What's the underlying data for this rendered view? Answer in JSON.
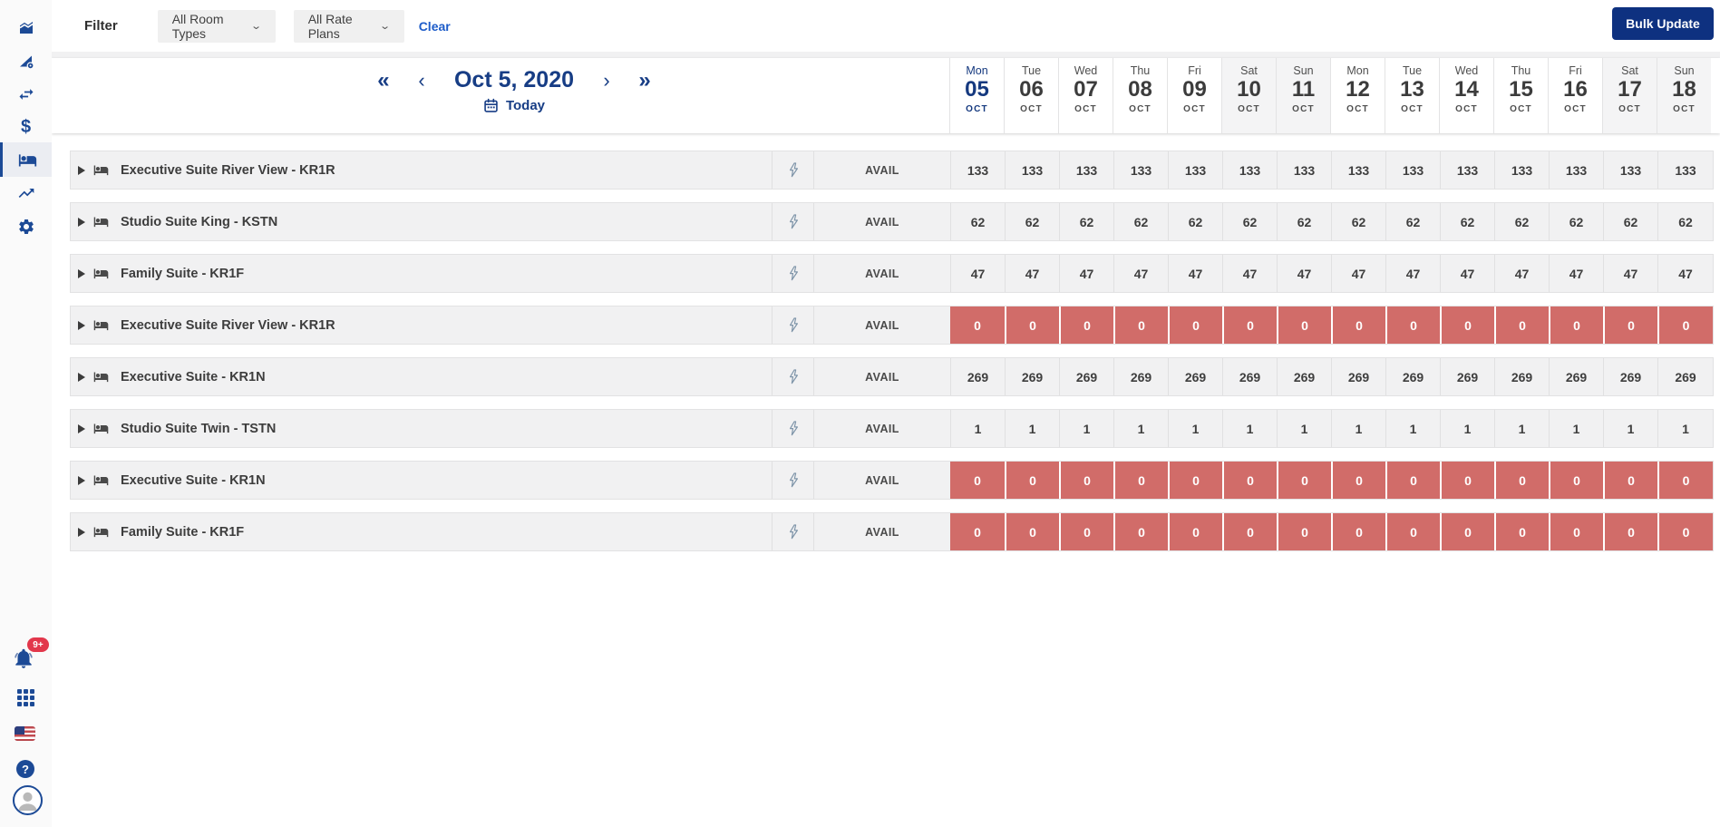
{
  "colors": {
    "navy": "#1c4a96",
    "navy_text": "#173d85",
    "button_navy": "#0e3180",
    "sold_out_red": "#d16c69",
    "badge_red": "#e2374b",
    "link_blue": "#1d5cc9",
    "row_gray": "#f1f1f2",
    "weekend_gray": "#f4f4f5"
  },
  "sidebar": {
    "items": [
      {
        "icon": "area-chart-icon",
        "active": false
      },
      {
        "icon": "rates-triangle-gear-icon",
        "active": false
      },
      {
        "icon": "swap-arrows-icon",
        "active": false
      },
      {
        "icon": "dollar-icon",
        "active": false
      },
      {
        "icon": "inventory-bed-icon",
        "active": true
      },
      {
        "icon": "trending-up-icon",
        "active": false
      },
      {
        "icon": "settings-gear-icon",
        "active": false
      }
    ],
    "notification_badge": "9+",
    "dollar_glyph": "$",
    "help_glyph": "?"
  },
  "filter_bar": {
    "label": "Filter",
    "room_types_value": "All Room Types",
    "rate_plans_value": "All Rate Plans",
    "clear_label": "Clear",
    "bulk_update_label": "Bulk Update",
    "chevron": "⌄"
  },
  "date_nav": {
    "prev_fast": "«",
    "prev": "‹",
    "title": "Oct 5, 2020",
    "next": "›",
    "next_fast": "»",
    "today_label": "Today"
  },
  "calendar": {
    "columns": [
      {
        "dow": "Mon",
        "day": "05",
        "month": "OCT",
        "weekend": false,
        "active": true
      },
      {
        "dow": "Tue",
        "day": "06",
        "month": "OCT",
        "weekend": false,
        "active": false
      },
      {
        "dow": "Wed",
        "day": "07",
        "month": "OCT",
        "weekend": false,
        "active": false
      },
      {
        "dow": "Thu",
        "day": "08",
        "month": "OCT",
        "weekend": false,
        "active": false
      },
      {
        "dow": "Fri",
        "day": "09",
        "month": "OCT",
        "weekend": false,
        "active": false
      },
      {
        "dow": "Sat",
        "day": "10",
        "month": "OCT",
        "weekend": true,
        "active": false
      },
      {
        "dow": "Sun",
        "day": "11",
        "month": "OCT",
        "weekend": true,
        "active": false
      },
      {
        "dow": "Mon",
        "day": "12",
        "month": "OCT",
        "weekend": false,
        "active": false
      },
      {
        "dow": "Tue",
        "day": "13",
        "month": "OCT",
        "weekend": false,
        "active": false
      },
      {
        "dow": "Wed",
        "day": "14",
        "month": "OCT",
        "weekend": false,
        "active": false
      },
      {
        "dow": "Thu",
        "day": "15",
        "month": "OCT",
        "weekend": false,
        "active": false
      },
      {
        "dow": "Fri",
        "day": "16",
        "month": "OCT",
        "weekend": false,
        "active": false
      },
      {
        "dow": "Sat",
        "day": "17",
        "month": "OCT",
        "weekend": true,
        "active": false
      },
      {
        "dow": "Sun",
        "day": "18",
        "month": "OCT",
        "weekend": true,
        "active": false
      }
    ]
  },
  "rows": [
    {
      "name": "Executive Suite River View - KR1R",
      "metric": "AVAIL",
      "zero": false,
      "values": [
        "133",
        "133",
        "133",
        "133",
        "133",
        "133",
        "133",
        "133",
        "133",
        "133",
        "133",
        "133",
        "133",
        "133"
      ]
    },
    {
      "name": "Studio Suite King - KSTN",
      "metric": "AVAIL",
      "zero": false,
      "values": [
        "62",
        "62",
        "62",
        "62",
        "62",
        "62",
        "62",
        "62",
        "62",
        "62",
        "62",
        "62",
        "62",
        "62"
      ]
    },
    {
      "name": "Family Suite - KR1F",
      "metric": "AVAIL",
      "zero": false,
      "values": [
        "47",
        "47",
        "47",
        "47",
        "47",
        "47",
        "47",
        "47",
        "47",
        "47",
        "47",
        "47",
        "47",
        "47"
      ]
    },
    {
      "name": "Executive Suite River View - KR1R",
      "metric": "AVAIL",
      "zero": true,
      "values": [
        "0",
        "0",
        "0",
        "0",
        "0",
        "0",
        "0",
        "0",
        "0",
        "0",
        "0",
        "0",
        "0",
        "0"
      ]
    },
    {
      "name": "Executive Suite - KR1N",
      "metric": "AVAIL",
      "zero": false,
      "values": [
        "269",
        "269",
        "269",
        "269",
        "269",
        "269",
        "269",
        "269",
        "269",
        "269",
        "269",
        "269",
        "269",
        "269"
      ]
    },
    {
      "name": "Studio Suite Twin - TSTN",
      "metric": "AVAIL",
      "zero": false,
      "values": [
        "1",
        "1",
        "1",
        "1",
        "1",
        "1",
        "1",
        "1",
        "1",
        "1",
        "1",
        "1",
        "1",
        "1"
      ]
    },
    {
      "name": "Executive Suite - KR1N",
      "metric": "AVAIL",
      "zero": true,
      "values": [
        "0",
        "0",
        "0",
        "0",
        "0",
        "0",
        "0",
        "0",
        "0",
        "0",
        "0",
        "0",
        "0",
        "0"
      ]
    },
    {
      "name": "Family Suite - KR1F",
      "metric": "AVAIL",
      "zero": true,
      "values": [
        "0",
        "0",
        "0",
        "0",
        "0",
        "0",
        "0",
        "0",
        "0",
        "0",
        "0",
        "0",
        "0",
        "0"
      ]
    }
  ]
}
